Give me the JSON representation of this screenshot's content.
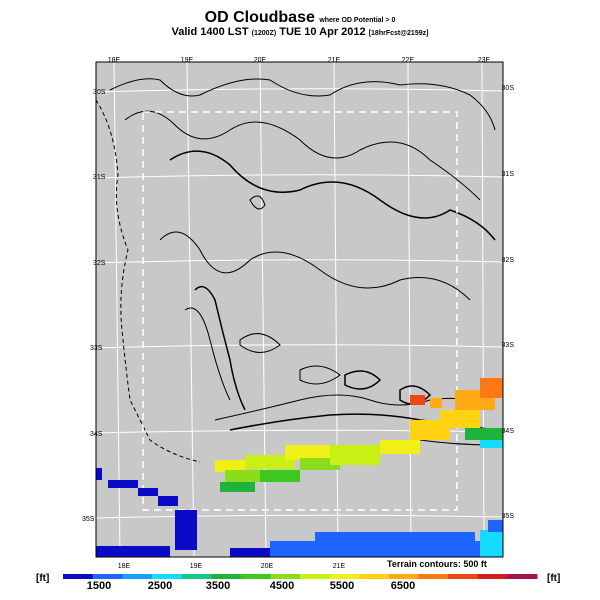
{
  "header": {
    "title": "OD Cloudbase",
    "title_suffix": "where OD Potential > 0",
    "valid_prefix": "Valid 1400 LST",
    "valid_code": "(1200Z)",
    "valid_date": "TUE 10 Apr 2012",
    "forecast_info": "[18hrFcst@2159z]"
  },
  "map": {
    "background_color": "#c8c8c8",
    "lon_labels_top": [
      "18E",
      "19E",
      "20E",
      "21E",
      "22E",
      "23E"
    ],
    "lon_labels_bottom": [
      "18E",
      "19E",
      "20E",
      "21E"
    ],
    "lat_labels_left": [
      "30S",
      "31S",
      "32S",
      "33S",
      "34S",
      "35S"
    ],
    "lat_labels_right": [
      "30S",
      "31S",
      "32S",
      "33S",
      "34S",
      "35S"
    ]
  },
  "legend": {
    "unit_left": "[ft]",
    "unit_right": "[ft]",
    "tick_labels": [
      "1500",
      "2500",
      "3500",
      "4500",
      "5500",
      "6500"
    ],
    "terrain_note": "Terrain contours: 500 ft",
    "colors": [
      "#0a0ac8",
      "#1e64ff",
      "#14a0ff",
      "#14dcff",
      "#14c88c",
      "#1eb43c",
      "#3cc81e",
      "#8cdc1e",
      "#c8f014",
      "#f0f014",
      "#ffd214",
      "#ffaa14",
      "#ff7814",
      "#f04614",
      "#d21e1e",
      "#a01450"
    ]
  }
}
